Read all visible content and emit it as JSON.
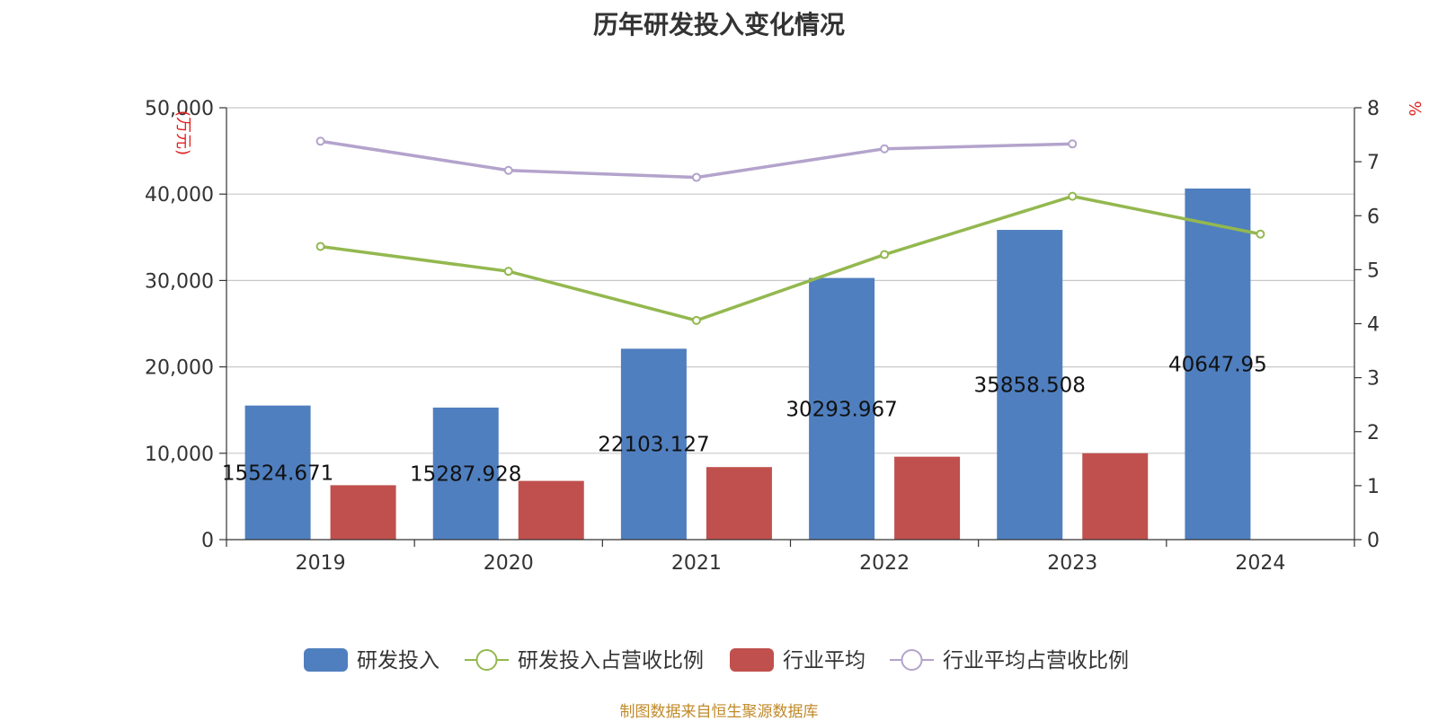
{
  "chart_data": {
    "type": "bar",
    "title": "历年研发投入变化情况",
    "categories": [
      "2019",
      "2020",
      "2021",
      "2022",
      "2023",
      "2024"
    ],
    "left_axis": {
      "unit": "(万元)",
      "range": [
        0,
        50000
      ],
      "ticks": [
        "0",
        "10,000",
        "20,000",
        "30,000",
        "40,000",
        "50,000"
      ]
    },
    "right_axis": {
      "unit": "%",
      "range": [
        0,
        8
      ],
      "ticks": [
        "0",
        "1",
        "2",
        "3",
        "4",
        "5",
        "6",
        "7",
        "8"
      ]
    },
    "series": [
      {
        "name": "研发投入",
        "kind": "bar",
        "axis": "left",
        "color": "#4f7fbf",
        "values": [
          15524.671,
          15287.928,
          22103.127,
          30293.967,
          35858.508,
          40647.95
        ],
        "labels": [
          "15524.671",
          "15287.928",
          "22103.127",
          "30293.967",
          "35858.508",
          "40647.95"
        ]
      },
      {
        "name": "研发投入占营收比例",
        "kind": "line",
        "axis": "right",
        "color": "#93b84f",
        "values": [
          5.43,
          4.97,
          4.06,
          5.28,
          6.36,
          5.66
        ]
      },
      {
        "name": "行业平均",
        "kind": "bar",
        "axis": "left",
        "color": "#c0504d",
        "values": [
          6300,
          6800,
          8400,
          9600,
          10000,
          null
        ]
      },
      {
        "name": "行业平均占营收比例",
        "kind": "line",
        "axis": "right",
        "color": "#b3a3cc",
        "values": [
          7.38,
          6.84,
          6.71,
          7.24,
          7.33,
          null
        ]
      }
    ],
    "grid": true,
    "legend": "bottom"
  },
  "source": "制图数据来自恒生聚源数据库"
}
